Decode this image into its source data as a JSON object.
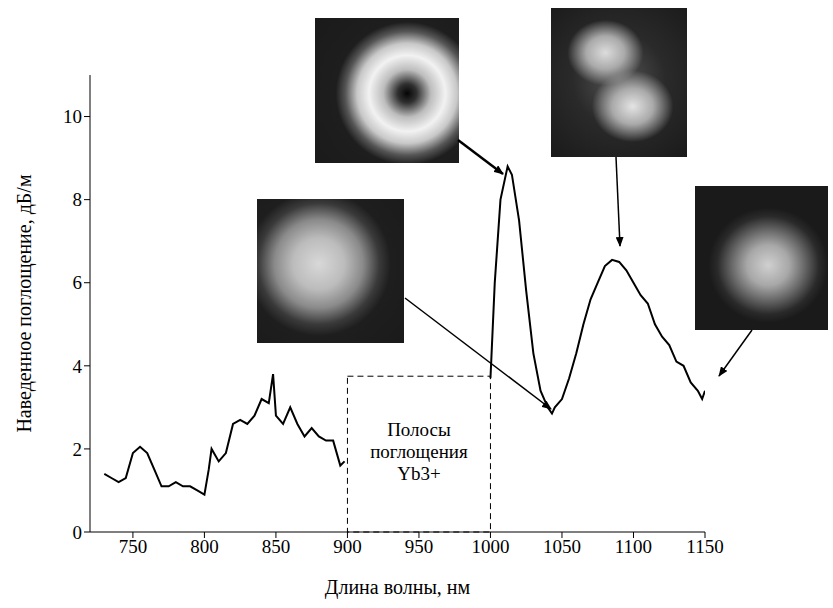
{
  "chart_data": {
    "type": "line",
    "x_label": "Длина волны, нм",
    "y_label": "Наведенное поглощение, дБ/м",
    "xlim": [
      720,
      1150
    ],
    "xticks": [
      750,
      800,
      850,
      900,
      950,
      1000,
      1050,
      1100,
      1150
    ],
    "ylim": [
      0,
      11
    ],
    "yticks": [
      0,
      2,
      4,
      6,
      8,
      10
    ],
    "grid": false,
    "x": [
      730,
      735,
      740,
      745,
      750,
      755,
      760,
      765,
      770,
      775,
      780,
      785,
      790,
      795,
      800,
      803,
      805,
      810,
      815,
      820,
      825,
      830,
      835,
      840,
      845,
      848,
      850,
      855,
      860,
      865,
      870,
      875,
      880,
      885,
      890,
      895,
      898,
      950,
      1000,
      1003,
      1007,
      1012,
      1015,
      1020,
      1025,
      1030,
      1035,
      1040,
      1043,
      1045,
      1050,
      1055,
      1060,
      1065,
      1070,
      1075,
      1080,
      1085,
      1090,
      1095,
      1100,
      1105,
      1110,
      1115,
      1120,
      1125,
      1130,
      1135,
      1140,
      1145,
      1148,
      1150
    ],
    "series": [
      {
        "color": "#000000",
        "line_style": "solid",
        "values": [
          1.4,
          1.3,
          1.2,
          1.3,
          1.9,
          2.05,
          1.9,
          1.5,
          1.1,
          1.1,
          1.2,
          1.1,
          1.1,
          1.0,
          0.9,
          1.5,
          2.0,
          1.7,
          1.9,
          2.6,
          2.7,
          2.6,
          2.8,
          3.2,
          3.1,
          3.8,
          2.8,
          2.6,
          3.0,
          2.6,
          2.3,
          2.5,
          2.3,
          2.2,
          2.2,
          1.6,
          1.7,
          null,
          3.7,
          6.0,
          8.0,
          8.8,
          8.6,
          7.5,
          5.8,
          4.3,
          3.4,
          3.0,
          2.85,
          3.0,
          3.2,
          3.7,
          4.3,
          5.0,
          5.6,
          6.0,
          6.4,
          6.55,
          6.5,
          6.3,
          6.0,
          5.7,
          5.5,
          5.0,
          4.7,
          4.5,
          4.1,
          4.0,
          3.6,
          3.4,
          3.2,
          3.4
        ]
      }
    ],
    "annotations": [
      {
        "text": "Полосы поглощения Yb3+",
        "x": [
          900,
          1000
        ],
        "y": [
          0,
          3.75
        ],
        "line_style": "dashed"
      }
    ]
  }
}
